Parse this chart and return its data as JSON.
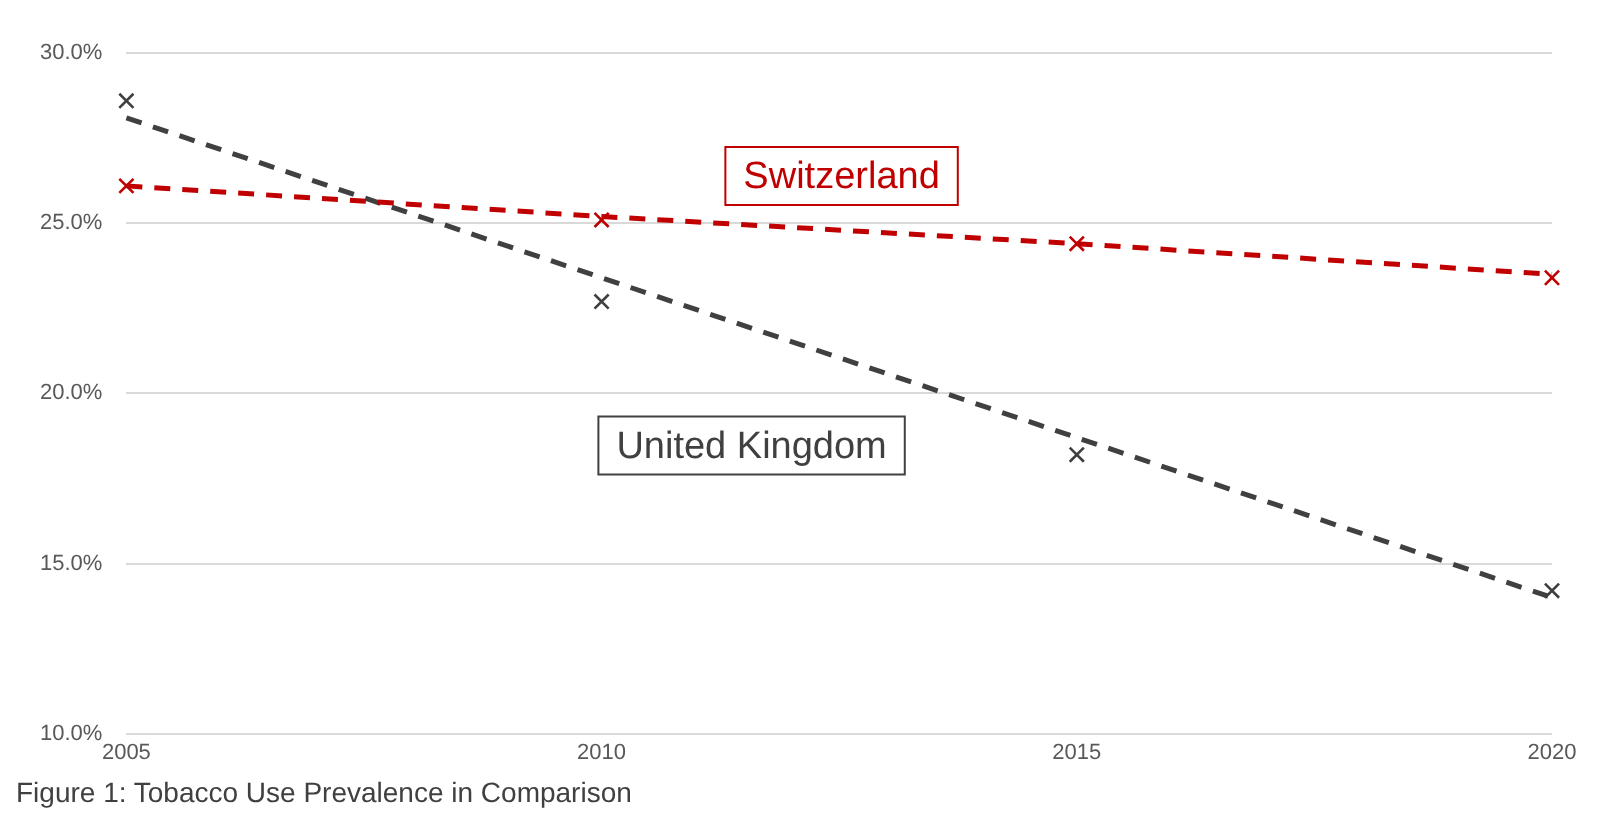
{
  "chart_data": {
    "type": "scatter",
    "x": [
      2005,
      2010,
      2015,
      2020
    ],
    "series": [
      {
        "name": "Switzerland",
        "color": "#c00000",
        "marker": "cross",
        "values": [
          26.1,
          25.1,
          24.4,
          23.4
        ]
      },
      {
        "name": "United Kingdom",
        "color": "#404040",
        "marker": "cross",
        "values": [
          28.6,
          22.7,
          18.2,
          14.2
        ]
      },
      {
        "type": "line",
        "color": "#c00000",
        "line_style": "dashed",
        "marker": "none",
        "values": [
          26.1,
          25.2,
          24.4,
          23.5
        ]
      },
      {
        "type": "line",
        "color": "#404040",
        "line_style": "dashed",
        "marker": "none",
        "values": [
          28.1,
          23.4,
          18.7,
          14.0
        ]
      }
    ],
    "xlim": [
      2005,
      2020
    ],
    "xticks": [
      2005,
      2010,
      2015,
      2020
    ],
    "ylim": [
      10,
      30
    ],
    "yticks": [
      {
        "value": 10,
        "label": "10.0%"
      },
      {
        "value": 15,
        "label": "15.0%"
      },
      {
        "value": 20,
        "label": "20.0%"
      },
      {
        "value": 25,
        "label": "25.0%"
      },
      {
        "value": 30,
        "label": "30.0%"
      }
    ],
    "grid": "y",
    "legend": false,
    "annotations": [
      "Figure 1: Tobacco Use Prevalence in Comparison"
    ]
  }
}
